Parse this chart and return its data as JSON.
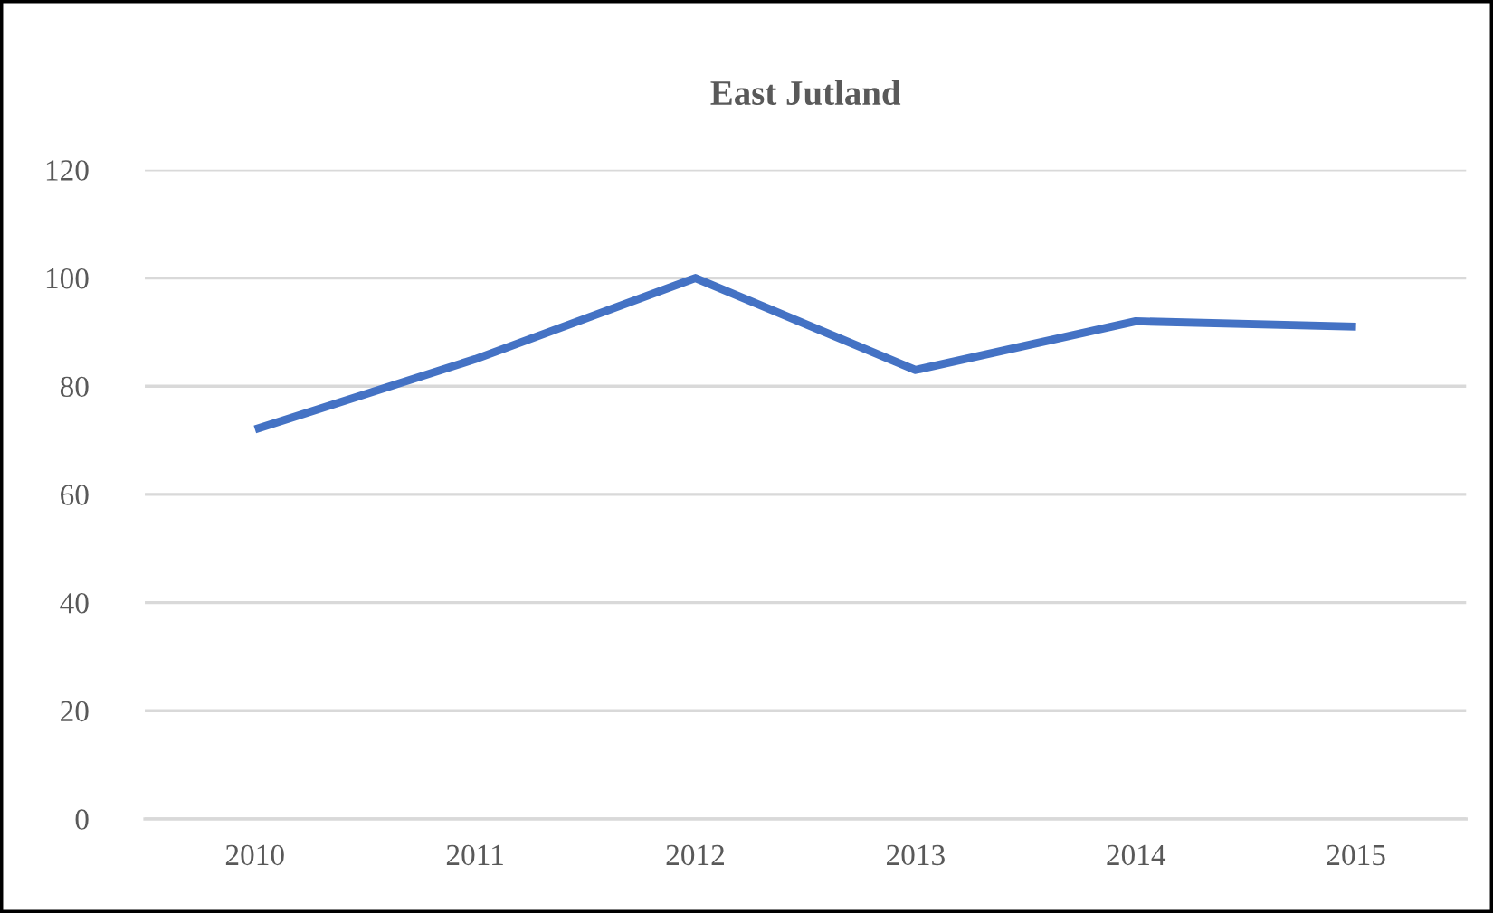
{
  "chart_data": {
    "type": "line",
    "title": "East Jutland",
    "categories": [
      "2010",
      "2011",
      "2012",
      "2013",
      "2014",
      "2015"
    ],
    "series": [
      {
        "color": "#4472c4",
        "values": [
          72,
          85,
          100,
          83,
          92,
          91
        ]
      }
    ],
    "ylim": [
      0,
      120
    ],
    "yticks": [
      0,
      20,
      40,
      60,
      80,
      100,
      120
    ],
    "grid": "y",
    "line_style": "solid"
  }
}
